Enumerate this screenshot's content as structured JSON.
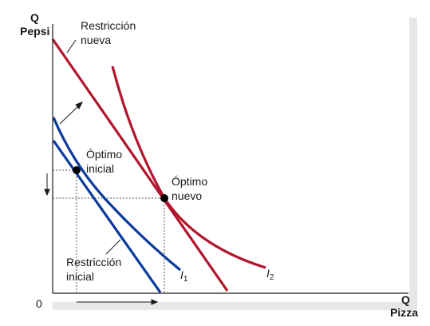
{
  "axes": {
    "y_label_line1": "Q",
    "y_label_line2": "Pepsi",
    "x_label_line1": "Q",
    "x_label_line2": "Pizza",
    "origin": "0"
  },
  "labels": {
    "new_constraint_line1": "Restricción",
    "new_constraint_line2": "nueva",
    "initial_optimum_line1": "Óptimo",
    "initial_optimum_line2": "inicial",
    "new_optimum_line1": "Óptimo",
    "new_optimum_line2": "nuevo",
    "initial_constraint_line1": "Restricción",
    "initial_constraint_line2": "inicial",
    "curve1_letter": "I",
    "curve1_index": "1",
    "curve2_letter": "I",
    "curve2_index": "2"
  },
  "colors": {
    "initial_lines": "#0a3a9c",
    "new_lines": "#b0152d",
    "axis": "#1a1a1a",
    "dashed_guides": "#555555",
    "panel_shadow": "#e7e7e7"
  }
}
